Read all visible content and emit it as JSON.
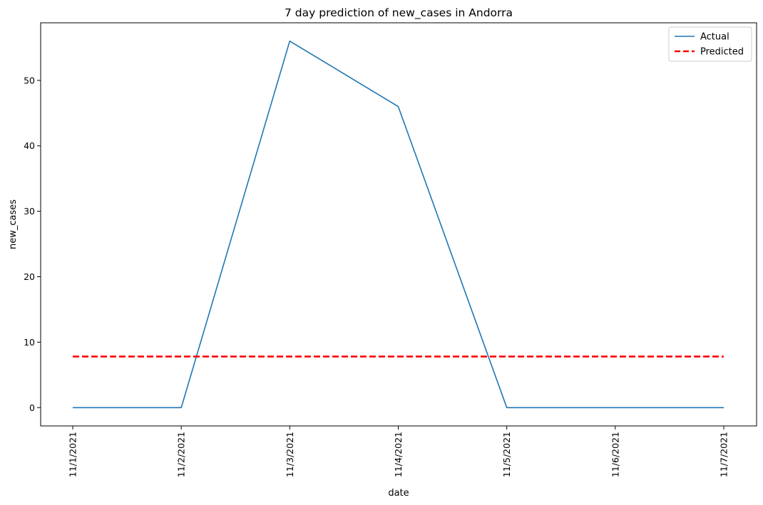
{
  "chart_data": {
    "type": "line",
    "title": "7 day prediction of new_cases in Andorra",
    "xlabel": "date",
    "ylabel": "new_cases",
    "categories": [
      "11/1/2021",
      "11/2/2021",
      "11/3/2021",
      "11/4/2021",
      "11/5/2021",
      "11/6/2021",
      "11/7/2021"
    ],
    "series": [
      {
        "name": "Actual",
        "values": [
          0,
          0,
          56,
          46,
          0,
          0,
          0
        ],
        "color": "#1f77b4",
        "style": "solid"
      },
      {
        "name": "Predicted",
        "values": [
          7.8,
          7.8,
          7.8,
          7.8,
          7.8,
          7.8,
          7.8
        ],
        "color": "#ff0000",
        "style": "dashed"
      }
    ],
    "yticks": [
      0,
      10,
      20,
      30,
      40,
      50
    ],
    "ylim": [
      -2.8,
      58.8
    ],
    "grid": false,
    "legend": "top-right"
  }
}
